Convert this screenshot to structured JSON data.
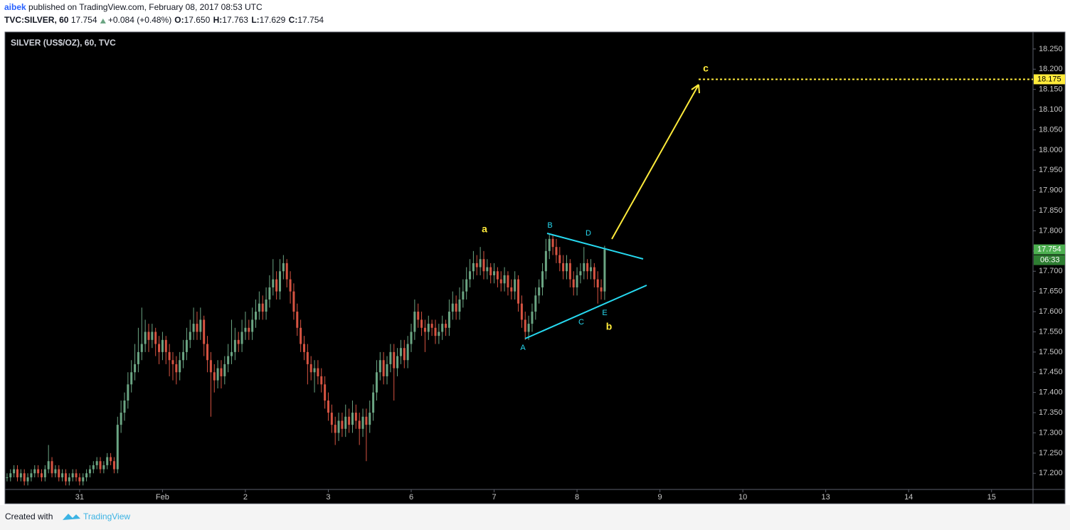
{
  "header": {
    "author": "aibek",
    "published": "published on TradingView.com, February 08, 2017 08:53 UTC",
    "symbol": "TVC:SILVER, 60",
    "last": "17.754",
    "change": "+0.084 (+0.48%)",
    "ohlc": [
      {
        "label": "O:",
        "value": "17.650"
      },
      {
        "label": "H:",
        "value": "17.763"
      },
      {
        "label": "L:",
        "value": "17.629"
      },
      {
        "label": "C:",
        "value": "17.754"
      }
    ]
  },
  "chart_data": {
    "type": "candlestick",
    "title": "SILVER (US$/OZ), 60, TVC",
    "up_color": "#6ba583",
    "down_color": "#d75442",
    "grid": false,
    "xlim": [
      -0.6,
      297
    ],
    "ylim": [
      17.16,
      18.292
    ],
    "xticks": [
      {
        "value": 21,
        "label": "31"
      },
      {
        "value": 45,
        "label": "Feb"
      },
      {
        "value": 69,
        "label": "2"
      },
      {
        "value": 93,
        "label": "3"
      },
      {
        "value": 117,
        "label": "6"
      },
      {
        "value": 141,
        "label": "7"
      },
      {
        "value": 165,
        "label": "8"
      },
      {
        "value": 189,
        "label": "9"
      },
      {
        "value": 213,
        "label": "10"
      },
      {
        "value": 237,
        "label": "13"
      },
      {
        "value": 261,
        "label": "14"
      },
      {
        "value": 285,
        "label": "15"
      }
    ],
    "yticks": [
      {
        "value": 17.2,
        "label": "17.200"
      },
      {
        "value": 17.25,
        "label": "17.250"
      },
      {
        "value": 17.3,
        "label": "17.300"
      },
      {
        "value": 17.35,
        "label": "17.350"
      },
      {
        "value": 17.4,
        "label": "17.400"
      },
      {
        "value": 17.45,
        "label": "17.450"
      },
      {
        "value": 17.5,
        "label": "17.500"
      },
      {
        "value": 17.55,
        "label": "17.550"
      },
      {
        "value": 17.6,
        "label": "17.600"
      },
      {
        "value": 17.65,
        "label": "17.650"
      },
      {
        "value": 17.7,
        "label": "17.700"
      },
      {
        "value": 17.75,
        "label": "17.750"
      },
      {
        "value": 17.8,
        "label": "17.800"
      },
      {
        "value": 17.85,
        "label": "17.850"
      },
      {
        "value": 17.9,
        "label": "17.900"
      },
      {
        "value": 17.95,
        "label": "17.950"
      },
      {
        "value": 18.0,
        "label": "18.000"
      },
      {
        "value": 18.05,
        "label": "18.050"
      },
      {
        "value": 18.1,
        "label": "18.100"
      },
      {
        "value": 18.15,
        "label": "18.150"
      },
      {
        "value": 18.2,
        "label": "18.200"
      },
      {
        "value": 18.25,
        "label": "18.250"
      }
    ],
    "last_price": {
      "value": 17.754,
      "label": "17.754"
    },
    "countdown": "06:33",
    "target": {
      "value": 18.175,
      "label": "18.175"
    },
    "annotations": {
      "wave_a": "a",
      "wave_b": "b",
      "wave_c": "c",
      "A": "A",
      "B": "B",
      "C": "C",
      "D": "D",
      "E": "E"
    },
    "candles": [
      [
        17.19,
        17.2,
        17.18,
        17.19
      ],
      [
        17.19,
        17.21,
        17.18,
        17.2
      ],
      [
        17.2,
        17.22,
        17.19,
        17.21
      ],
      [
        17.21,
        17.22,
        17.18,
        17.19
      ],
      [
        17.19,
        17.21,
        17.18,
        17.2
      ],
      [
        17.2,
        17.21,
        17.17,
        17.18
      ],
      [
        17.18,
        17.2,
        17.17,
        17.19
      ],
      [
        17.19,
        17.21,
        17.18,
        17.2
      ],
      [
        17.2,
        17.22,
        17.19,
        17.21
      ],
      [
        17.21,
        17.22,
        17.19,
        17.2
      ],
      [
        17.2,
        17.21,
        17.18,
        17.19
      ],
      [
        17.19,
        17.22,
        17.18,
        17.21
      ],
      [
        17.21,
        17.27,
        17.2,
        17.23
      ],
      [
        17.23,
        17.24,
        17.19,
        17.2
      ],
      [
        17.2,
        17.22,
        17.19,
        17.21
      ],
      [
        17.21,
        17.22,
        17.18,
        17.19
      ],
      [
        17.19,
        17.21,
        17.18,
        17.2
      ],
      [
        17.2,
        17.21,
        17.17,
        17.18
      ],
      [
        17.18,
        17.2,
        17.17,
        17.19
      ],
      [
        17.19,
        17.21,
        17.18,
        17.2
      ],
      [
        17.2,
        17.21,
        17.18,
        17.19
      ],
      [
        17.19,
        17.2,
        17.17,
        17.18
      ],
      [
        17.18,
        17.2,
        17.17,
        17.19
      ],
      [
        17.19,
        17.21,
        17.18,
        17.2
      ],
      [
        17.2,
        17.22,
        17.19,
        17.21
      ],
      [
        17.21,
        17.23,
        17.2,
        17.22
      ],
      [
        17.22,
        17.24,
        17.21,
        17.23
      ],
      [
        17.23,
        17.24,
        17.2,
        17.21
      ],
      [
        17.21,
        17.23,
        17.2,
        17.22
      ],
      [
        17.22,
        17.25,
        17.21,
        17.24
      ],
      [
        17.24,
        17.25,
        17.22,
        17.23
      ],
      [
        17.23,
        17.24,
        17.2,
        17.21
      ],
      [
        17.21,
        17.34,
        17.2,
        17.32
      ],
      [
        17.32,
        17.38,
        17.3,
        17.35
      ],
      [
        17.35,
        17.4,
        17.33,
        17.38
      ],
      [
        17.38,
        17.45,
        17.36,
        17.42
      ],
      [
        17.42,
        17.48,
        17.4,
        17.45
      ],
      [
        17.45,
        17.52,
        17.43,
        17.47
      ],
      [
        17.47,
        17.56,
        17.45,
        17.5
      ],
      [
        17.5,
        17.61,
        17.48,
        17.52
      ],
      [
        17.52,
        17.58,
        17.5,
        17.55
      ],
      [
        17.55,
        17.57,
        17.5,
        17.53
      ],
      [
        17.53,
        17.57,
        17.51,
        17.55
      ],
      [
        17.55,
        17.56,
        17.49,
        17.52
      ],
      [
        17.52,
        17.54,
        17.47,
        17.5
      ],
      [
        17.5,
        17.55,
        17.48,
        17.53
      ],
      [
        17.53,
        17.54,
        17.47,
        17.5
      ],
      [
        17.5,
        17.52,
        17.44,
        17.48
      ],
      [
        17.48,
        17.5,
        17.43,
        17.47
      ],
      [
        17.47,
        17.49,
        17.42,
        17.45
      ],
      [
        17.45,
        17.5,
        17.43,
        17.48
      ],
      [
        17.48,
        17.53,
        17.46,
        17.5
      ],
      [
        17.5,
        17.56,
        17.48,
        17.53
      ],
      [
        17.53,
        17.58,
        17.51,
        17.55
      ],
      [
        17.55,
        17.61,
        17.53,
        17.57
      ],
      [
        17.57,
        17.6,
        17.53,
        17.55
      ],
      [
        17.55,
        17.61,
        17.53,
        17.58
      ],
      [
        17.58,
        17.59,
        17.49,
        17.52
      ],
      [
        17.52,
        17.54,
        17.45,
        17.48
      ],
      [
        17.48,
        17.5,
        17.34,
        17.45
      ],
      [
        17.45,
        17.47,
        17.4,
        17.43
      ],
      [
        17.43,
        17.48,
        17.41,
        17.46
      ],
      [
        17.46,
        17.48,
        17.41,
        17.44
      ],
      [
        17.44,
        17.49,
        17.42,
        17.47
      ],
      [
        17.47,
        17.52,
        17.45,
        17.49
      ],
      [
        17.49,
        17.58,
        17.47,
        17.5
      ],
      [
        17.5,
        17.56,
        17.48,
        17.53
      ],
      [
        17.53,
        17.55,
        17.5,
        17.52
      ],
      [
        17.52,
        17.58,
        17.5,
        17.55
      ],
      [
        17.55,
        17.6,
        17.53,
        17.56
      ],
      [
        17.56,
        17.58,
        17.53,
        17.55
      ],
      [
        17.55,
        17.61,
        17.53,
        17.58
      ],
      [
        17.58,
        17.63,
        17.56,
        17.6
      ],
      [
        17.6,
        17.65,
        17.58,
        17.62
      ],
      [
        17.62,
        17.64,
        17.58,
        17.6
      ],
      [
        17.6,
        17.66,
        17.58,
        17.63
      ],
      [
        17.63,
        17.69,
        17.61,
        17.66
      ],
      [
        17.66,
        17.73,
        17.64,
        17.68
      ],
      [
        17.68,
        17.7,
        17.63,
        17.65
      ],
      [
        17.65,
        17.73,
        17.63,
        17.7
      ],
      [
        17.7,
        17.74,
        17.68,
        17.72
      ],
      [
        17.72,
        17.73,
        17.66,
        17.68
      ],
      [
        17.68,
        17.7,
        17.62,
        17.65
      ],
      [
        17.65,
        17.67,
        17.58,
        17.6
      ],
      [
        17.6,
        17.62,
        17.54,
        17.56
      ],
      [
        17.56,
        17.58,
        17.5,
        17.52
      ],
      [
        17.52,
        17.54,
        17.48,
        17.5
      ],
      [
        17.5,
        17.52,
        17.42,
        17.47
      ],
      [
        17.47,
        17.49,
        17.43,
        17.45
      ],
      [
        17.45,
        17.48,
        17.4,
        17.46
      ],
      [
        17.46,
        17.48,
        17.42,
        17.44
      ],
      [
        17.44,
        17.46,
        17.4,
        17.42
      ],
      [
        17.42,
        17.44,
        17.36,
        17.38
      ],
      [
        17.38,
        17.4,
        17.33,
        17.35
      ],
      [
        17.35,
        17.37,
        17.3,
        17.32
      ],
      [
        17.32,
        17.34,
        17.27,
        17.3
      ],
      [
        17.3,
        17.35,
        17.28,
        17.33
      ],
      [
        17.33,
        17.35,
        17.29,
        17.31
      ],
      [
        17.31,
        17.37,
        17.29,
        17.34
      ],
      [
        17.34,
        17.36,
        17.3,
        17.32
      ],
      [
        17.32,
        17.38,
        17.3,
        17.35
      ],
      [
        17.35,
        17.37,
        17.31,
        17.33
      ],
      [
        17.33,
        17.35,
        17.27,
        17.31
      ],
      [
        17.31,
        17.36,
        17.29,
        17.34
      ],
      [
        17.34,
        17.36,
        17.23,
        17.32
      ],
      [
        17.32,
        17.38,
        17.3,
        17.35
      ],
      [
        17.35,
        17.42,
        17.33,
        17.4
      ],
      [
        17.4,
        17.48,
        17.38,
        17.45
      ],
      [
        17.45,
        17.5,
        17.43,
        17.48
      ],
      [
        17.48,
        17.5,
        17.42,
        17.44
      ],
      [
        17.44,
        17.49,
        17.42,
        17.47
      ],
      [
        17.47,
        17.52,
        17.45,
        17.5
      ],
      [
        17.5,
        17.52,
        17.38,
        17.46
      ],
      [
        17.46,
        17.51,
        17.44,
        17.49
      ],
      [
        17.49,
        17.53,
        17.47,
        17.51
      ],
      [
        17.51,
        17.53,
        17.46,
        17.48
      ],
      [
        17.48,
        17.54,
        17.46,
        17.52
      ],
      [
        17.52,
        17.57,
        17.5,
        17.55
      ],
      [
        17.55,
        17.63,
        17.53,
        17.6
      ],
      [
        17.6,
        17.62,
        17.56,
        17.58
      ],
      [
        17.58,
        17.6,
        17.54,
        17.56
      ],
      [
        17.56,
        17.58,
        17.5,
        17.55
      ],
      [
        17.55,
        17.59,
        17.53,
        17.57
      ],
      [
        17.57,
        17.58,
        17.54,
        17.56
      ],
      [
        17.56,
        17.58,
        17.52,
        17.54
      ],
      [
        17.54,
        17.57,
        17.52,
        17.55
      ],
      [
        17.55,
        17.59,
        17.53,
        17.57
      ],
      [
        17.57,
        17.58,
        17.54,
        17.56
      ],
      [
        17.56,
        17.63,
        17.54,
        17.6
      ],
      [
        17.6,
        17.65,
        17.58,
        17.62
      ],
      [
        17.62,
        17.64,
        17.58,
        17.6
      ],
      [
        17.6,
        17.66,
        17.58,
        17.63
      ],
      [
        17.63,
        17.68,
        17.61,
        17.65
      ],
      [
        17.65,
        17.71,
        17.63,
        17.68
      ],
      [
        17.68,
        17.73,
        17.66,
        17.7
      ],
      [
        17.7,
        17.75,
        17.68,
        17.72
      ],
      [
        17.72,
        17.74,
        17.69,
        17.71
      ],
      [
        17.71,
        17.76,
        17.69,
        17.73
      ],
      [
        17.73,
        17.75,
        17.68,
        17.7
      ],
      [
        17.7,
        17.73,
        17.68,
        17.71
      ],
      [
        17.71,
        17.72,
        17.67,
        17.69
      ],
      [
        17.69,
        17.72,
        17.67,
        17.7
      ],
      [
        17.7,
        17.71,
        17.66,
        17.68
      ],
      [
        17.68,
        17.7,
        17.65,
        17.67
      ],
      [
        17.67,
        17.71,
        17.65,
        17.69
      ],
      [
        17.69,
        17.7,
        17.64,
        17.66
      ],
      [
        17.66,
        17.68,
        17.63,
        17.65
      ],
      [
        17.65,
        17.7,
        17.63,
        17.68
      ],
      [
        17.68,
        17.69,
        17.6,
        17.62
      ],
      [
        17.62,
        17.64,
        17.56,
        17.58
      ],
      [
        17.58,
        17.6,
        17.53,
        17.55
      ],
      [
        17.55,
        17.59,
        17.53,
        17.57
      ],
      [
        17.57,
        17.62,
        17.55,
        17.6
      ],
      [
        17.6,
        17.66,
        17.58,
        17.64
      ],
      [
        17.64,
        17.68,
        17.62,
        17.66
      ],
      [
        17.66,
        17.72,
        17.64,
        17.7
      ],
      [
        17.7,
        17.78,
        17.68,
        17.75
      ],
      [
        17.75,
        17.79,
        17.73,
        17.78
      ],
      [
        17.78,
        17.79,
        17.74,
        17.76
      ],
      [
        17.76,
        17.78,
        17.72,
        17.74
      ],
      [
        17.74,
        17.76,
        17.7,
        17.72
      ],
      [
        17.72,
        17.74,
        17.68,
        17.7
      ],
      [
        17.7,
        17.74,
        17.68,
        17.72
      ],
      [
        17.72,
        17.73,
        17.66,
        17.68
      ],
      [
        17.68,
        17.7,
        17.64,
        17.66
      ],
      [
        17.66,
        17.71,
        17.64,
        17.69
      ],
      [
        17.69,
        17.72,
        17.67,
        17.7
      ],
      [
        17.7,
        17.76,
        17.68,
        17.72
      ],
      [
        17.72,
        17.73,
        17.68,
        17.7
      ],
      [
        17.7,
        17.73,
        17.68,
        17.71
      ],
      [
        17.71,
        17.72,
        17.66,
        17.68
      ],
      [
        17.68,
        17.7,
        17.62,
        17.66
      ],
      [
        17.66,
        17.68,
        17.63,
        17.65
      ],
      [
        17.65,
        17.763,
        17.629,
        17.754
      ]
    ]
  },
  "footer": {
    "created": "Created with",
    "brand": "TradingView"
  }
}
